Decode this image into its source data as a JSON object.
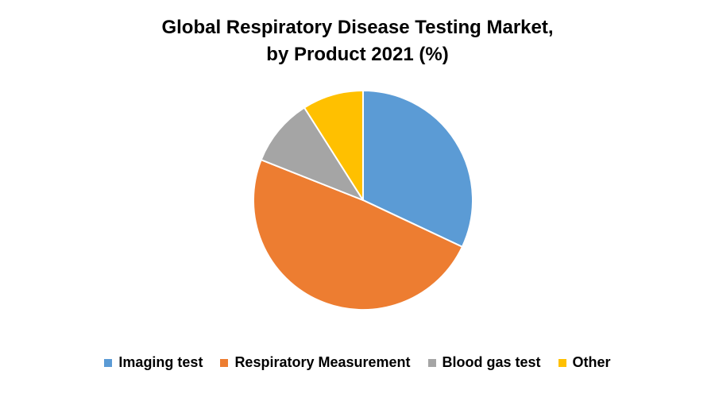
{
  "chart_data": {
    "type": "pie",
    "title_lines": [
      "Global Respiratory Disease Testing Market,",
      "by Product 2021 (%)"
    ],
    "slices": [
      {
        "label": "Imaging test",
        "value": 32,
        "color": "#5B9BD5"
      },
      {
        "label": "Respiratory Measurement",
        "value": 49,
        "color": "#ED7D31"
      },
      {
        "label": "Blood gas test",
        "value": 10,
        "color": "#A5A5A5"
      },
      {
        "label": "Other",
        "value": 9,
        "color": "#FFC000"
      }
    ],
    "legend_position": "bottom",
    "start_angle": "12 o'clock",
    "direction": "clockwise"
  }
}
